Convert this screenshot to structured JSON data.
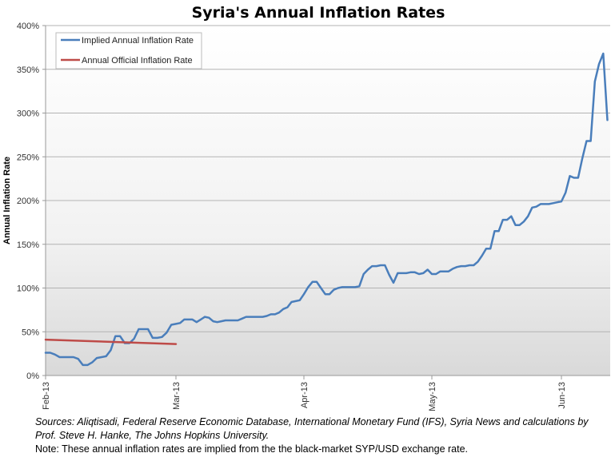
{
  "chart_data": {
    "type": "line",
    "title": "Syria's Annual Inflation Rates",
    "xlabel": "",
    "ylabel": "Annual Inflation Rate",
    "ylim": [
      0,
      400
    ],
    "yticks": [
      0,
      50,
      100,
      150,
      200,
      250,
      300,
      350,
      400
    ],
    "ytick_labels": [
      "0%",
      "50%",
      "100%",
      "150%",
      "200%",
      "250%",
      "300%",
      "350%",
      "400%"
    ],
    "x_unit": "days since 2013-02-01",
    "xticks": [
      0,
      28,
      59,
      89,
      120
    ],
    "xtick_labels": [
      "Feb-13",
      "Mar-13",
      "Apr-13",
      "May-13",
      "Jun-13"
    ],
    "grid": "horizontal",
    "legend_position": "top-left",
    "series": [
      {
        "name": "Implied Annual Inflation Rate",
        "color": "#4a7ebb",
        "points": [
          [
            0,
            26
          ],
          [
            1,
            26
          ],
          [
            2,
            24
          ],
          [
            3,
            21
          ],
          [
            4,
            21
          ],
          [
            5,
            21
          ],
          [
            6,
            21
          ],
          [
            7,
            19
          ],
          [
            8,
            12
          ],
          [
            9,
            12
          ],
          [
            10,
            15
          ],
          [
            11,
            20
          ],
          [
            12,
            21
          ],
          [
            13,
            22
          ],
          [
            14,
            29
          ],
          [
            15,
            45
          ],
          [
            16,
            45
          ],
          [
            17,
            37
          ],
          [
            18,
            37
          ],
          [
            19,
            42
          ],
          [
            20,
            53
          ],
          [
            21,
            53
          ],
          [
            22,
            53
          ],
          [
            23,
            43
          ],
          [
            24,
            43
          ],
          [
            25,
            44
          ],
          [
            26,
            49
          ],
          [
            27,
            58
          ],
          [
            28,
            59
          ],
          [
            29,
            60
          ],
          [
            30,
            64
          ],
          [
            31,
            64
          ],
          [
            32,
            64
          ],
          [
            33,
            61
          ],
          [
            34,
            64
          ],
          [
            35,
            67
          ],
          [
            36,
            66
          ],
          [
            37,
            62
          ],
          [
            38,
            61
          ],
          [
            39,
            62
          ],
          [
            40,
            63
          ],
          [
            41,
            63
          ],
          [
            42,
            63
          ],
          [
            43,
            63
          ],
          [
            44,
            65
          ],
          [
            45,
            67
          ],
          [
            46,
            67
          ],
          [
            47,
            67
          ],
          [
            48,
            67
          ],
          [
            49,
            67
          ],
          [
            50,
            68
          ],
          [
            51,
            70
          ],
          [
            52,
            70
          ],
          [
            53,
            72
          ],
          [
            54,
            76
          ],
          [
            55,
            78
          ],
          [
            56,
            84
          ],
          [
            57,
            85
          ],
          [
            58,
            86
          ],
          [
            59,
            93
          ],
          [
            60,
            101
          ],
          [
            61,
            107
          ],
          [
            62,
            107
          ],
          [
            63,
            100
          ],
          [
            64,
            93
          ],
          [
            65,
            93
          ],
          [
            66,
            98
          ],
          [
            67,
            100
          ],
          [
            68,
            101
          ],
          [
            69,
            101
          ],
          [
            70,
            101
          ],
          [
            71,
            101
          ],
          [
            72,
            102
          ],
          [
            73,
            116
          ],
          [
            74,
            121
          ],
          [
            75,
            125
          ],
          [
            76,
            125
          ],
          [
            77,
            126
          ],
          [
            78,
            126
          ],
          [
            79,
            115
          ],
          [
            80,
            106
          ],
          [
            81,
            117
          ],
          [
            82,
            117
          ],
          [
            83,
            117
          ],
          [
            84,
            118
          ],
          [
            85,
            118
          ],
          [
            86,
            116
          ],
          [
            87,
            117
          ],
          [
            88,
            121
          ],
          [
            89,
            116
          ],
          [
            90,
            116
          ],
          [
            91,
            119
          ],
          [
            92,
            119
          ],
          [
            93,
            119
          ],
          [
            94,
            122
          ],
          [
            95,
            124
          ],
          [
            96,
            125
          ],
          [
            97,
            125
          ],
          [
            98,
            126
          ],
          [
            99,
            126
          ],
          [
            100,
            130
          ],
          [
            101,
            137
          ],
          [
            102,
            145
          ],
          [
            103,
            145
          ],
          [
            104,
            165
          ],
          [
            105,
            165
          ],
          [
            106,
            178
          ],
          [
            107,
            178
          ],
          [
            108,
            182
          ],
          [
            109,
            172
          ],
          [
            110,
            172
          ],
          [
            111,
            176
          ],
          [
            112,
            182
          ],
          [
            113,
            192
          ],
          [
            114,
            193
          ],
          [
            115,
            196
          ],
          [
            116,
            196
          ],
          [
            117,
            196
          ],
          [
            118,
            197
          ],
          [
            119,
            198
          ],
          [
            120,
            199
          ],
          [
            121,
            209
          ],
          [
            122,
            228
          ],
          [
            123,
            226
          ],
          [
            124,
            226
          ],
          [
            125,
            248
          ],
          [
            126,
            268
          ],
          [
            127,
            268
          ],
          [
            128,
            336
          ],
          [
            129,
            356
          ],
          [
            130,
            368
          ],
          [
            131,
            292
          ]
        ]
      },
      {
        "name": "Annual Official Inflation Rate",
        "color": "#be4b48",
        "points": [
          [
            0,
            41
          ],
          [
            28,
            36
          ]
        ]
      }
    ]
  },
  "footer": {
    "sources_line1": "Sources: Aliqtisadi,  Federal Reserve Economic Database, International Monetary Fund (IFS), Syria News and calculations by",
    "sources_line2": "Prof. Steve H. Hanke, The Johns Hopkins University.",
    "note": "Note: These annual inflation rates are implied from the the black-market SYP/USD exchange rate."
  }
}
